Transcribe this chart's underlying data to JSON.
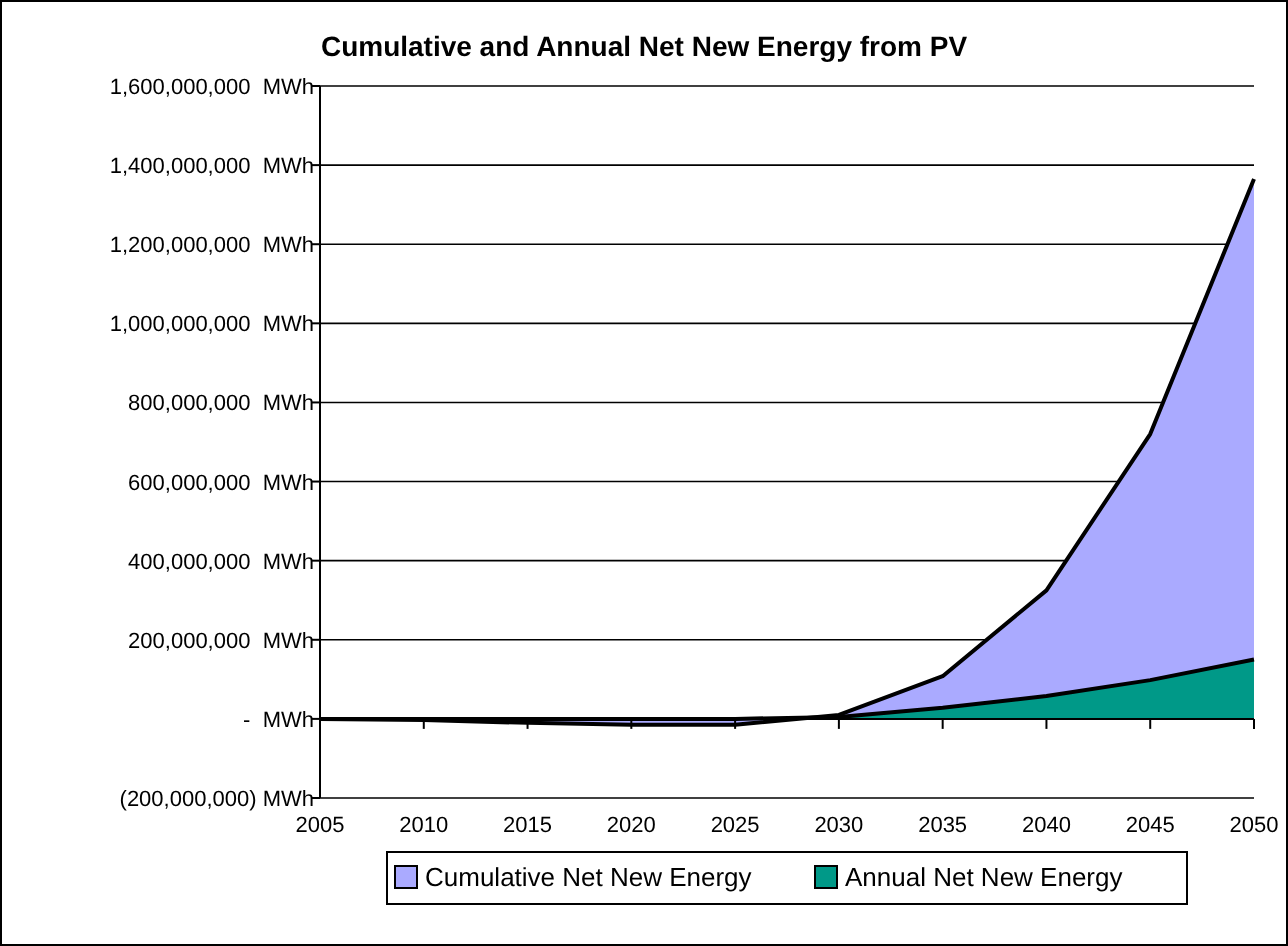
{
  "chart_data": {
    "type": "area",
    "title": "Cumulative and Annual Net New Energy from PV",
    "x": [
      2005,
      2010,
      2015,
      2020,
      2025,
      2030,
      2035,
      2040,
      2045,
      2050
    ],
    "series": [
      {
        "name": "Cumulative Net New Energy",
        "color": "#aaaaff",
        "values": [
          0,
          -3000000,
          -10000000,
          -15000000,
          -15000000,
          10000000,
          108000000,
          325000000,
          720000000,
          1365000000
        ]
      },
      {
        "name": "Annual Net New Energy",
        "color": "#009988",
        "values": [
          0,
          0,
          0,
          0,
          0,
          5000000,
          28000000,
          58000000,
          98000000,
          150000000
        ]
      }
    ],
    "xlim": [
      2005,
      2050
    ],
    "xticks": [
      2005,
      2010,
      2015,
      2020,
      2025,
      2030,
      2035,
      2040,
      2045,
      2050
    ],
    "ylim": [
      -200000000,
      1600000000
    ],
    "yticks": [
      {
        "value": -200000000,
        "label": "(200,000,000) MWh"
      },
      {
        "value": 0,
        "label": "-  MWh"
      },
      {
        "value": 200000000,
        "label": "200,000,000  MWh"
      },
      {
        "value": 400000000,
        "label": "400,000,000  MWh"
      },
      {
        "value": 600000000,
        "label": "600,000,000  MWh"
      },
      {
        "value": 800000000,
        "label": "800,000,000  MWh"
      },
      {
        "value": 1000000000,
        "label": "1,000,000,000  MWh"
      },
      {
        "value": 1200000000,
        "label": "1,200,000,000  MWh"
      },
      {
        "value": 1400000000,
        "label": "1,400,000,000  MWh"
      },
      {
        "value": 1600000000,
        "label": "1,600,000,000  MWh"
      }
    ],
    "grid": "y",
    "legend": "bottom"
  }
}
